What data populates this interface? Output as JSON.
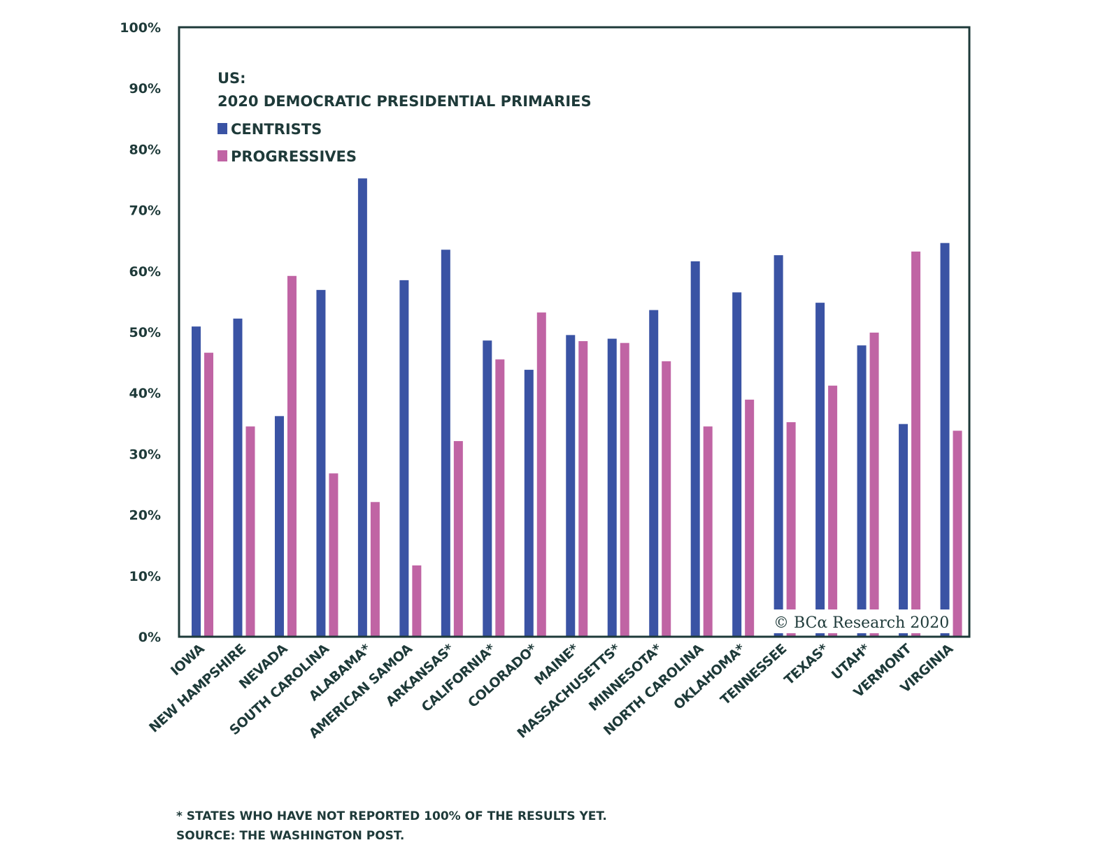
{
  "chart_data": {
    "type": "bar",
    "title": "US:",
    "subtitle": "2020 DEMOCRATIC PRESIDENTIAL PRIMARIES",
    "xlabel": "",
    "ylabel": "",
    "ylim": [
      0,
      100
    ],
    "yticks": [
      "0%",
      "10%",
      "20%",
      "30%",
      "40%",
      "50%",
      "60%",
      "70%",
      "80%",
      "90%",
      "100%"
    ],
    "grid": false,
    "legend_position": "top-left",
    "categories": [
      "IOWA",
      "NEW HAMPSHIRE",
      "NEVADA",
      "SOUTH CAROLINA",
      "ALABAMA*",
      "AMERICAN SAMOA",
      "ARKANSAS*",
      "CALIFORNIA*",
      "COLORADO*",
      "MAINE*",
      "MASSACHUSETTS*",
      "MINNESOTA*",
      "NORTH CAROLINA",
      "OKLAHOMA*",
      "TENNESSEE",
      "TEXAS*",
      "UTAH*",
      "VERMONT",
      "VIRGINIA"
    ],
    "series": [
      {
        "name": "CENTRISTS",
        "color": "#3A53A4",
        "values": [
          50.9,
          52.2,
          36.2,
          56.9,
          75.2,
          58.5,
          63.5,
          48.6,
          43.8,
          49.5,
          48.9,
          53.6,
          61.6,
          56.5,
          62.6,
          54.8,
          47.8,
          34.9,
          64.6
        ]
      },
      {
        "name": "PROGRESSIVES",
        "color": "#C064A4",
        "values": [
          46.6,
          34.5,
          59.2,
          26.8,
          22.1,
          11.7,
          32.1,
          45.5,
          53.2,
          48.5,
          48.2,
          45.2,
          34.5,
          38.9,
          35.2,
          41.2,
          49.9,
          63.2,
          33.8
        ]
      }
    ],
    "annotations": [
      "© BCα Research 2020"
    ]
  },
  "footnotes": {
    "note": "* STATES WHO HAVE NOT REPORTED 100% OF THE RESULTS YET.",
    "source": "SOURCE: THE WASHINGTON POST."
  },
  "colors": {
    "axis": "#1e3a39",
    "text": "#1e3a39"
  }
}
